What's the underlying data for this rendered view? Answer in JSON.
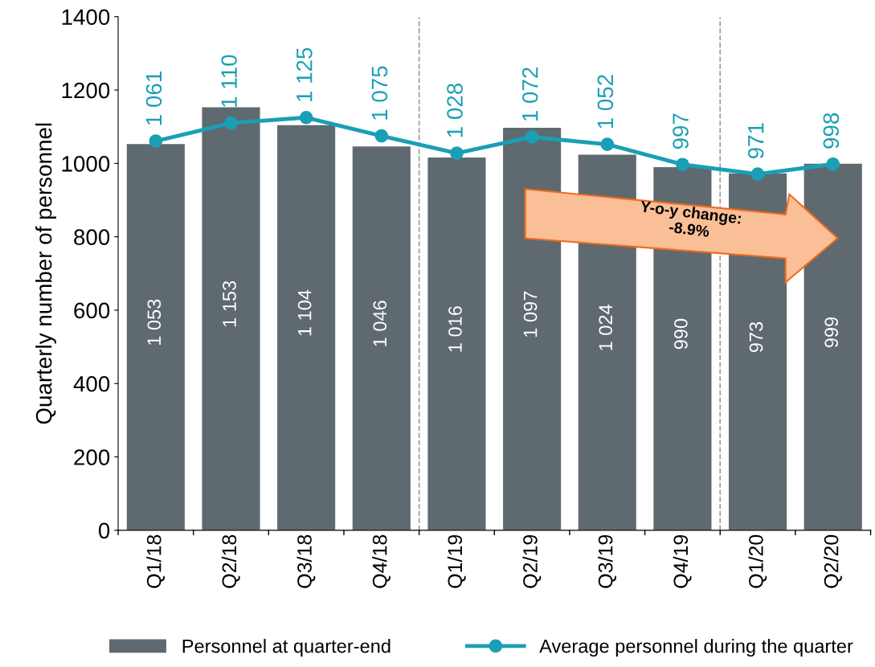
{
  "chart_data": {
    "type": "bar",
    "ylabel": "Quarterly number of personnel",
    "categories": [
      "Q1/18",
      "Q2/18",
      "Q3/18",
      "Q4/18",
      "Q1/19",
      "Q2/19",
      "Q3/19",
      "Q4/19",
      "Q1/20",
      "Q2/20"
    ],
    "series": [
      {
        "name": "Personnel at quarter-end",
        "color": "#5f6970",
        "values": [
          1053,
          1153,
          1104,
          1046,
          1016,
          1097,
          1024,
          990,
          973,
          999
        ],
        "value_labels": [
          "1 053",
          "1 153",
          "1 104",
          "1 046",
          "1 016",
          "1 097",
          "1 024",
          "990",
          "973",
          "999"
        ]
      },
      {
        "name": "Average personnel during the quarter",
        "type": "line",
        "color": "#1a9fb5",
        "marker": "circle",
        "values": [
          1061,
          1110,
          1125,
          1075,
          1028,
          1072,
          1052,
          997,
          971,
          998
        ],
        "value_labels": [
          "1 061",
          "1 110",
          "1 125",
          "1 075",
          "1 028",
          "1 072",
          "1 052",
          "997",
          "971",
          "998"
        ]
      }
    ],
    "ylim": [
      0,
      1400
    ],
    "yticks": [
      0,
      200,
      400,
      600,
      800,
      1000,
      1200,
      1400
    ],
    "annotations": [
      "Y-o-y change:\n-8.9%"
    ],
    "grid": false,
    "legend": "bottom"
  }
}
